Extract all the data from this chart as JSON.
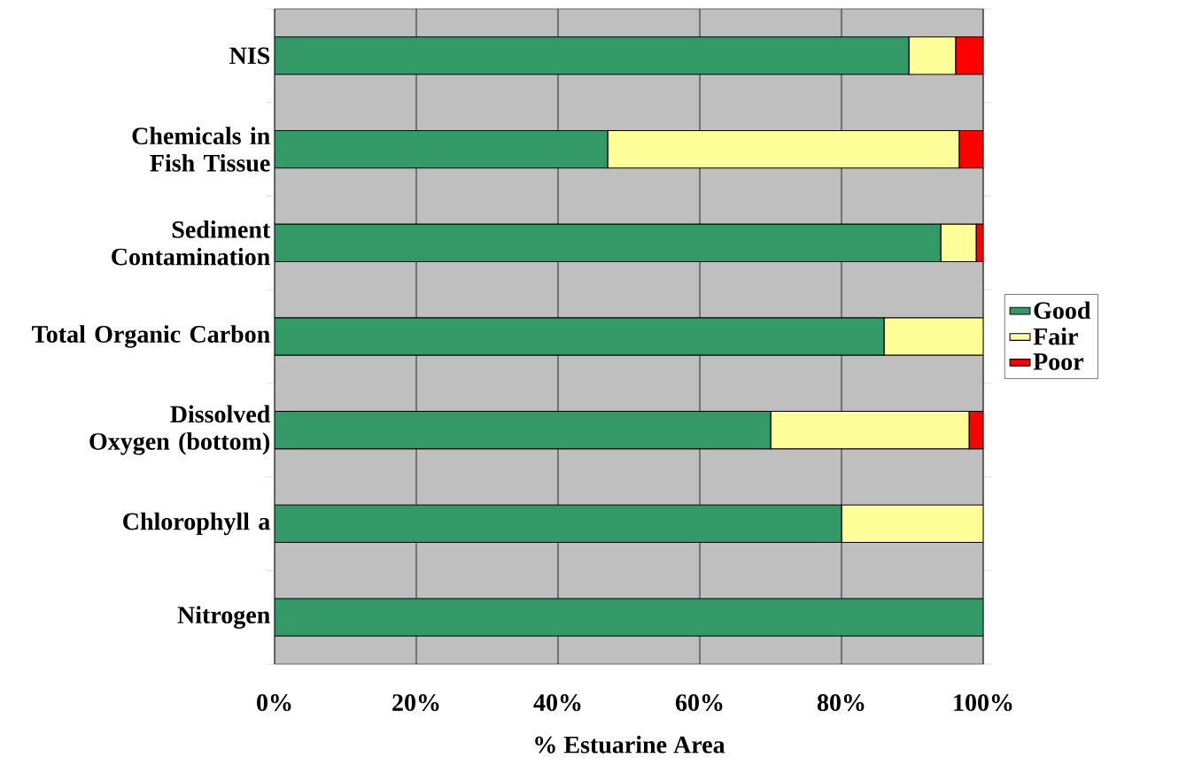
{
  "chart_data": {
    "type": "bar",
    "orientation": "horizontal",
    "stacked": true,
    "categories": [
      "NIS",
      "Chemicals in Fish Tissue",
      "Sediment Contamination",
      "Total Organic Carbon",
      "Dissolved Oxygen (bottom)",
      "Chlorophyll a",
      "Nitrogen"
    ],
    "series": [
      {
        "name": "Good",
        "color": "#339966",
        "values": [
          89.5,
          47,
          94,
          86,
          70,
          80,
          100
        ]
      },
      {
        "name": "Fair",
        "color": "#ffff99",
        "values": [
          6.6,
          49.6,
          5,
          14,
          28,
          20,
          0
        ]
      },
      {
        "name": "Poor",
        "color": "#ff0000",
        "values": [
          3.9,
          3.4,
          1,
          0,
          2,
          0,
          0
        ]
      }
    ],
    "xlim": [
      0,
      100
    ],
    "xticks": [
      {
        "value": 0,
        "label": "0%"
      },
      {
        "value": 20,
        "label": "20%"
      },
      {
        "value": 40,
        "label": "40%"
      },
      {
        "value": 60,
        "label": "60%"
      },
      {
        "value": 80,
        "label": "80%"
      },
      {
        "value": 100,
        "label": "100%"
      }
    ],
    "xlabel": "% Estuarine Area",
    "grid": "x",
    "legend": "right"
  }
}
